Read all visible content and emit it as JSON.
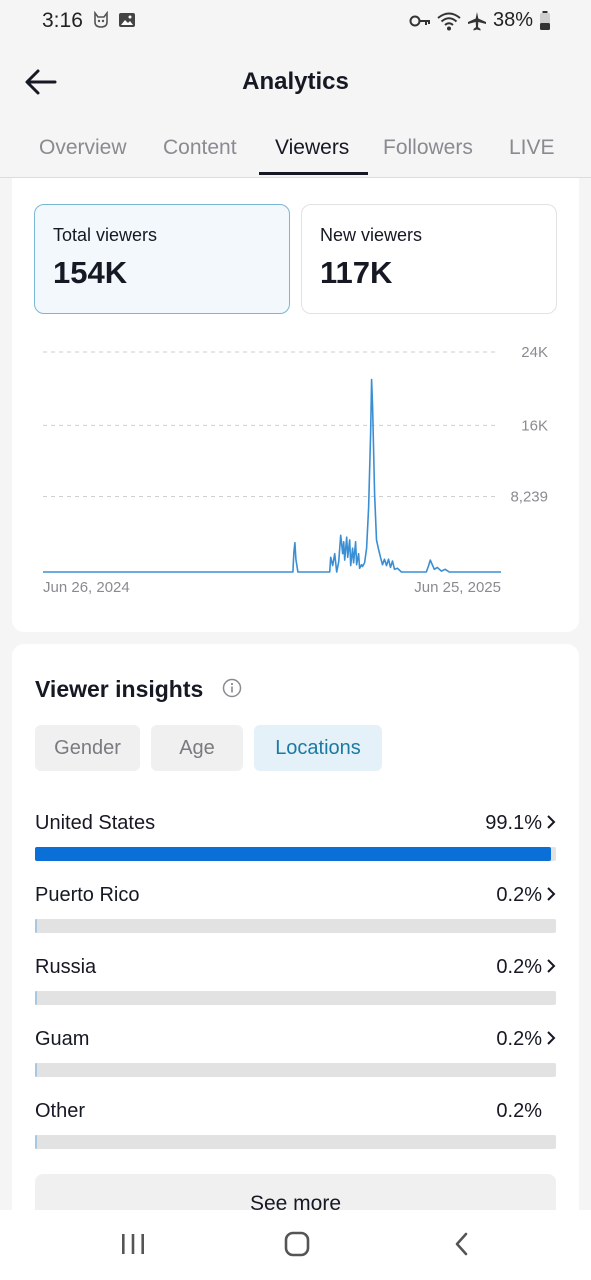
{
  "status_bar": {
    "time": "3:16",
    "battery": "38%",
    "left_icons": [
      "cat-notification-icon",
      "image-notification-icon"
    ],
    "right_icons": [
      "vpn-key-icon",
      "wifi-icon",
      "airplane-icon",
      "battery-icon"
    ]
  },
  "header": {
    "title": "Analytics",
    "back_icon": "arrow-left-icon"
  },
  "tabs": [
    {
      "label": "Overview",
      "active": false
    },
    {
      "label": "Content",
      "active": false
    },
    {
      "label": "Viewers",
      "active": true
    },
    {
      "label": "Followers",
      "active": false
    },
    {
      "label": "LIVE",
      "active": false
    }
  ],
  "metrics": {
    "total": {
      "label": "Total viewers",
      "value": "154K",
      "selected": true
    },
    "new": {
      "label": "New viewers",
      "value": "117K",
      "selected": false
    }
  },
  "chart_data": {
    "type": "line",
    "x_start_label": "Jun 26, 2024",
    "x_end_label": "Jun 25, 2025",
    "y_tick_labels": [
      "24K",
      "16K",
      "8,239"
    ],
    "y_ticks": [
      24000,
      16000,
      8239
    ],
    "ylim": [
      0,
      24000
    ],
    "grid": true,
    "color": "#3a8fd4",
    "series": [
      {
        "points": [
          [
            0,
            0
          ],
          [
            251,
            0
          ],
          [
            252,
            2200
          ],
          [
            253,
            3200
          ],
          [
            254,
            1400
          ],
          [
            256,
            0
          ],
          [
            288,
            0
          ],
          [
            289,
            1600
          ],
          [
            291,
            700
          ],
          [
            293,
            2000
          ],
          [
            295,
            0
          ],
          [
            297,
            1100
          ],
          [
            299,
            4000
          ],
          [
            301,
            2000
          ],
          [
            302,
            3300
          ],
          [
            303,
            1300
          ],
          [
            305,
            3800
          ],
          [
            306,
            1600
          ],
          [
            308,
            3500
          ],
          [
            309,
            700
          ],
          [
            311,
            2600
          ],
          [
            312,
            1000
          ],
          [
            314,
            3300
          ],
          [
            315,
            800
          ],
          [
            317,
            2000
          ],
          [
            318,
            400
          ],
          [
            320,
            800
          ],
          [
            321,
            600
          ],
          [
            323,
            1000
          ],
          [
            325,
            2600
          ],
          [
            327,
            7000
          ],
          [
            329,
            15000
          ],
          [
            330,
            21000
          ],
          [
            331,
            18000
          ],
          [
            333,
            8500
          ],
          [
            335,
            3500
          ],
          [
            337,
            2500
          ],
          [
            339,
            1600
          ],
          [
            341,
            800
          ],
          [
            343,
            1400
          ],
          [
            345,
            700
          ],
          [
            347,
            1400
          ],
          [
            349,
            500
          ],
          [
            351,
            1200
          ],
          [
            353,
            300
          ],
          [
            356,
            400
          ],
          [
            360,
            0
          ],
          [
            385,
            0
          ],
          [
            387,
            600
          ],
          [
            389,
            1300
          ],
          [
            391,
            800
          ],
          [
            393,
            300
          ],
          [
            396,
            500
          ],
          [
            400,
            100
          ],
          [
            404,
            300
          ],
          [
            408,
            0
          ],
          [
            460,
            0
          ]
        ]
      }
    ]
  },
  "insights": {
    "title": "Viewer insights",
    "info_icon": "info-icon",
    "chips": [
      {
        "label": "Gender",
        "active": false
      },
      {
        "label": "Age",
        "active": false
      },
      {
        "label": "Locations",
        "active": true
      }
    ],
    "locations": [
      {
        "name": "United States",
        "pct": "99.1%",
        "value": 0.991,
        "chevron": true
      },
      {
        "name": "Puerto Rico",
        "pct": "0.2%",
        "value": 0.002,
        "chevron": true
      },
      {
        "name": "Russia",
        "pct": "0.2%",
        "value": 0.002,
        "chevron": true
      },
      {
        "name": "Guam",
        "pct": "0.2%",
        "value": 0.002,
        "chevron": true
      },
      {
        "name": "Other",
        "pct": "0.2%",
        "value": 0.002,
        "chevron": false
      }
    ],
    "see_more": "See more"
  },
  "nav_bar": {
    "icons": [
      "recent-apps-icon",
      "home-icon",
      "back-icon"
    ]
  }
}
